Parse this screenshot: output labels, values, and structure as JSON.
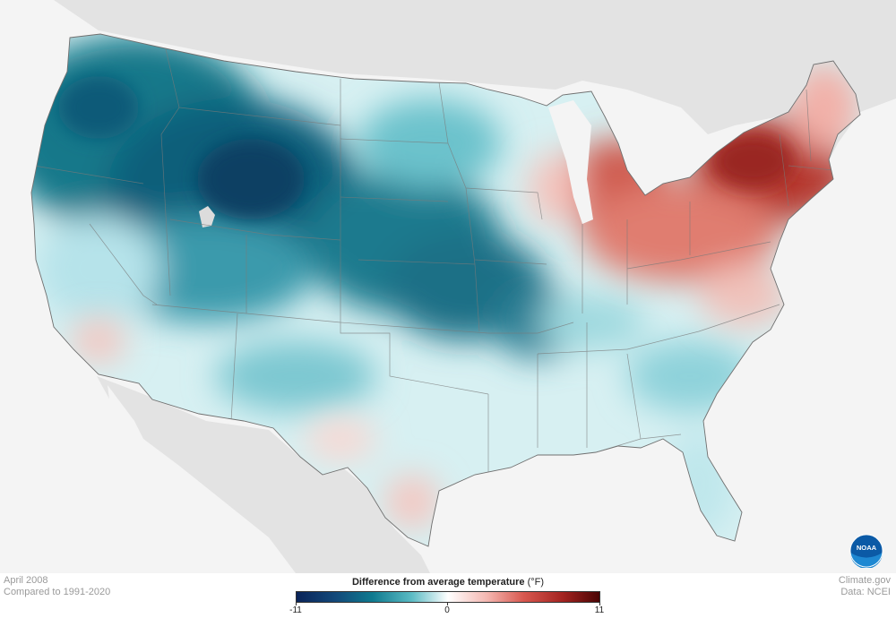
{
  "map": {
    "caption_date": "April 2008",
    "caption_baseline": "Compared to 1991-2020",
    "credit_source": "Climate.gov",
    "credit_data": "Data: NCEI",
    "logo_text": "NOAA",
    "legend": {
      "title": "Difference from average temperature",
      "unit": "(°F)",
      "min_label": "-11",
      "mid_label": "0",
      "max_label": "11",
      "min": -11,
      "max": 11,
      "colors": [
        "#0a2459",
        "#13497a",
        "#0f7a8f",
        "#5bbbc4",
        "#ffffff",
        "#f4b6b0",
        "#d8584f",
        "#a32320",
        "#4a0404"
      ]
    }
  }
}
